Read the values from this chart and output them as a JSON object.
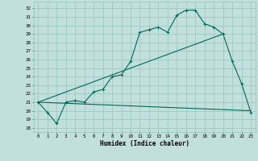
{
  "xlabel": "Humidex (Indice chaleur)",
  "bg_color": "#c2e0db",
  "grid_color": "#96c4bc",
  "line_color": "#006858",
  "xlim": [
    -0.5,
    23.5
  ],
  "ylim": [
    17.5,
    32.8
  ],
  "yticks": [
    18,
    19,
    20,
    21,
    22,
    23,
    24,
    25,
    26,
    27,
    28,
    29,
    30,
    31,
    32
  ],
  "xticks": [
    0,
    1,
    2,
    3,
    4,
    5,
    6,
    7,
    8,
    9,
    10,
    11,
    12,
    13,
    14,
    15,
    16,
    17,
    18,
    19,
    20,
    21,
    22,
    23
  ],
  "curve_x": [
    0,
    1,
    2,
    3,
    4,
    5,
    6,
    7,
    8,
    9,
    10,
    11,
    12,
    13,
    14,
    15,
    16,
    17,
    18,
    19,
    20,
    21,
    22,
    23
  ],
  "curve_y": [
    21.0,
    19.8,
    18.5,
    21.0,
    21.2,
    21.0,
    22.2,
    22.5,
    24.0,
    24.2,
    25.8,
    29.2,
    29.5,
    29.8,
    29.2,
    31.2,
    31.8,
    31.8,
    30.2,
    29.8,
    29.0,
    25.8,
    23.2,
    19.8
  ],
  "trend1_x": [
    0,
    20
  ],
  "trend1_y": [
    21.0,
    29.0
  ],
  "trend2_x": [
    0,
    23
  ],
  "trend2_y": [
    21.0,
    20.0
  ]
}
